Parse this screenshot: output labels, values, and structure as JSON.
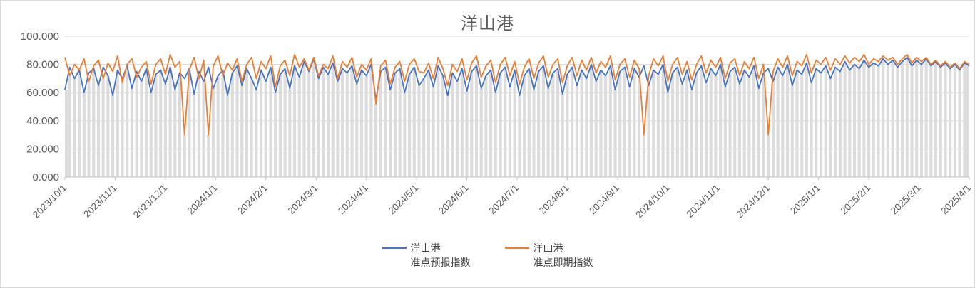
{
  "title": "洋山港",
  "colors": {
    "series_blue": "#4472C4",
    "series_orange": "#ED7D31",
    "grid": "#D9D9D9",
    "bar_fill": "#DCDCDC",
    "axis_line": "#BFBFBF",
    "axis_text": "#595959",
    "title_text": "#595959",
    "legend_text": "#404040"
  },
  "chart_data": {
    "type": "line",
    "title": "洋山港",
    "xlabel": "",
    "ylabel": "",
    "ylim": [
      0,
      100
    ],
    "grid": true,
    "legend_position": "bottom-center",
    "background_bars": "min_of_series",
    "y_ticks": [
      "0.000",
      "20.000",
      "40.000",
      "60.000",
      "80.000",
      "100.000"
    ],
    "y_tick_values": [
      0,
      20,
      40,
      60,
      80,
      100
    ],
    "x_ticks": [
      "2023/10/1",
      "2023/11/1",
      "2023/12/1",
      "2024/1/1",
      "2024/2/1",
      "2024/3/1",
      "2024/4/1",
      "2024/5/1",
      "2024/6/1",
      "2024/7/1",
      "2024/8/1",
      "2024/9/1",
      "2024/10/1",
      "2024/11/1",
      "2024/12/1",
      "2025/1/1",
      "2025/2/1",
      "2025/3/1",
      "2025/4/1"
    ],
    "series": [
      {
        "name": "洋山港 准点预报指数",
        "legend_lines": [
          "洋山港",
          "准点预报指数"
        ],
        "color": "#4472C4",
        "values": [
          62,
          78,
          70,
          76,
          60,
          74,
          77,
          65,
          78,
          72,
          58,
          76,
          70,
          79,
          63,
          75,
          68,
          77,
          60,
          73,
          76,
          66,
          78,
          62,
          74,
          70,
          77,
          59,
          75,
          68,
          78,
          63,
          72,
          76,
          58,
          74,
          79,
          65,
          77,
          70,
          62,
          76,
          68,
          78,
          60,
          73,
          77,
          63,
          79,
          71,
          82,
          75,
          84,
          70,
          78,
          73,
          81,
          68,
          77,
          74,
          79,
          66,
          76,
          72,
          80,
          55,
          75,
          78,
          62,
          74,
          77,
          60,
          73,
          78,
          65,
          70,
          76,
          64,
          79,
          72,
          58,
          74,
          68,
          77,
          61,
          75,
          79,
          63,
          72,
          76,
          60,
          74,
          78,
          64,
          76,
          58,
          72,
          77,
          62,
          75,
          79,
          63,
          74,
          77,
          59,
          73,
          78,
          65,
          76,
          70,
          80,
          68,
          76,
          72,
          79,
          62,
          75,
          78,
          64,
          77,
          71,
          79,
          65,
          76,
          73,
          80,
          60,
          74,
          78,
          66,
          76,
          62,
          74,
          79,
          67,
          77,
          72,
          80,
          64,
          75,
          78,
          66,
          76,
          71,
          79,
          63,
          74,
          77,
          68,
          78,
          72,
          80,
          65,
          76,
          73,
          81,
          67,
          77,
          74,
          79,
          70,
          78,
          75,
          82,
          76,
          80,
          77,
          83,
          78,
          81,
          79,
          84,
          80,
          83,
          78,
          82,
          85,
          79,
          83,
          80,
          84,
          79,
          82,
          78,
          81,
          77,
          80,
          76,
          81,
          79
        ]
      },
      {
        "name": "洋山港 准点即期指数",
        "legend_lines": [
          "洋山港",
          "准点即期指数"
        ],
        "color": "#ED7D31",
        "values": [
          85,
          72,
          80,
          76,
          84,
          68,
          79,
          83,
          70,
          81,
          75,
          86,
          67,
          80,
          84,
          71,
          78,
          82,
          66,
          80,
          84,
          73,
          87,
          78,
          82,
          30,
          76,
          85,
          70,
          83,
          30,
          79,
          86,
          72,
          81,
          76,
          84,
          68,
          80,
          85,
          70,
          82,
          77,
          86,
          64,
          79,
          83,
          72,
          87,
          78,
          84,
          76,
          85,
          72,
          80,
          77,
          86,
          70,
          82,
          78,
          85,
          71,
          80,
          76,
          84,
          52,
          79,
          83,
          66,
          78,
          82,
          68,
          80,
          84,
          75,
          74,
          81,
          70,
          85,
          77,
          65,
          80,
          75,
          84,
          69,
          81,
          86,
          71,
          79,
          83,
          67,
          80,
          85,
          72,
          82,
          66,
          78,
          84,
          70,
          81,
          86,
          71,
          80,
          84,
          67,
          79,
          85,
          72,
          83,
          76,
          85,
          74,
          82,
          78,
          86,
          69,
          80,
          84,
          71,
          83,
          77,
          30,
          72,
          84,
          79,
          86,
          68,
          80,
          85,
          73,
          82,
          69,
          80,
          86,
          74,
          83,
          78,
          85,
          70,
          81,
          84,
          72,
          82,
          77,
          85,
          70,
          80,
          30,
          75,
          84,
          78,
          86,
          72,
          82,
          79,
          87,
          74,
          83,
          80,
          85,
          76,
          84,
          80,
          86,
          81,
          85,
          82,
          87,
          80,
          84,
          82,
          86,
          83,
          85,
          80,
          84,
          87,
          81,
          85,
          82,
          85,
          80,
          83,
          79,
          82,
          78,
          81,
          77,
          82,
          80
        ]
      }
    ]
  }
}
